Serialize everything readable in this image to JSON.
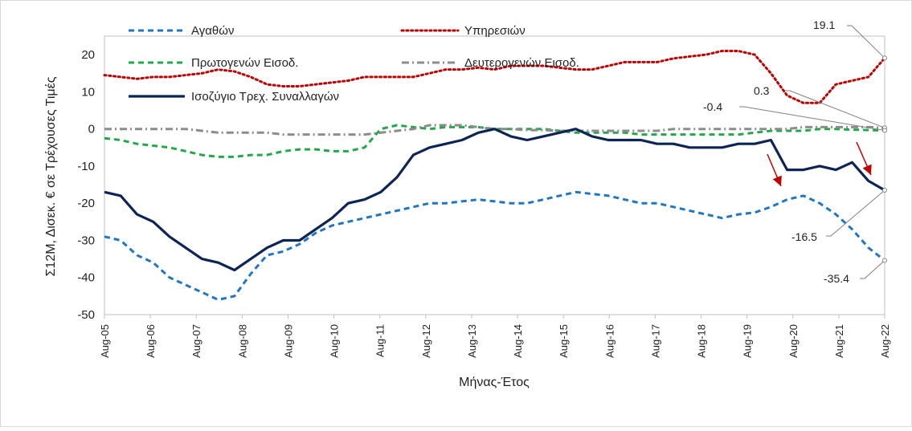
{
  "chart_data": {
    "type": "line",
    "xlabel": "Μήνας-Έτος",
    "ylabel": "Σ12Μ, Δισεκ. € σε Τρέχουσες Τιμές",
    "ylim": [
      -50,
      25
    ],
    "yticks": [
      20,
      10,
      0,
      -10,
      -20,
      -30,
      -40,
      -50
    ],
    "xticks": [
      "Aug-05",
      "Aug-06",
      "Aug-07",
      "Aug-08",
      "Aug-09",
      "Aug-10",
      "Aug-11",
      "Aug-12",
      "Aug-13",
      "Aug-14",
      "Aug-15",
      "Aug-16",
      "Aug-17",
      "Aug-18",
      "Aug-19",
      "Aug-20",
      "Aug-21",
      "Aug-22"
    ],
    "legend_position": "top",
    "grid": false,
    "series": [
      {
        "name": "Αγαθών",
        "color": "#1f77c4",
        "style": "dashed",
        "values": [
          -29,
          -30,
          -34,
          -36,
          -40,
          -42,
          -44,
          -46,
          -45,
          -39,
          -34,
          -33,
          -31,
          -28,
          -26,
          -25,
          -24,
          -23,
          -22,
          -21,
          -20,
          -20,
          -19.5,
          -19,
          -19.5,
          -20,
          -20,
          -19,
          -18,
          -17,
          -17.5,
          -18,
          -19,
          -20,
          -20,
          -21,
          -22,
          -23,
          -24,
          -23,
          -22.5,
          -21,
          -19,
          -18,
          -20,
          -23,
          -27,
          -32,
          -35.4
        ]
      },
      {
        "name": "Υπηρεσιών",
        "color": "#c00000",
        "style": "dotted",
        "values": [
          14.5,
          14,
          13.5,
          14,
          14,
          14.5,
          15,
          16,
          15.5,
          14,
          12,
          11.5,
          11.5,
          12,
          12.5,
          13,
          14,
          14,
          14,
          14,
          15,
          16,
          16,
          16.5,
          16,
          17,
          17,
          17,
          16.5,
          16,
          16,
          17,
          18,
          18,
          18,
          19,
          19.5,
          20,
          21,
          21,
          20,
          15,
          9,
          7,
          7,
          12,
          13,
          14,
          19.1
        ]
      },
      {
        "name": "Πρωτογενών Εισοδ.",
        "color": "#22a84a",
        "style": "dashed",
        "values": [
          -2.5,
          -3,
          -4,
          -4.5,
          -5,
          -6,
          -7,
          -7.5,
          -7.5,
          -7,
          -7,
          -6,
          -5.5,
          -5.5,
          -6,
          -6,
          -5,
          0,
          1,
          0.5,
          0,
          0.5,
          0.5,
          0.5,
          0,
          0,
          0,
          0,
          -0.5,
          -1,
          -1,
          -1,
          -1,
          -1.5,
          -1.5,
          -1.5,
          -1.5,
          -1.5,
          -1.5,
          -1.5,
          -1,
          -0.5,
          -0.5,
          -0.5,
          0,
          0,
          -0.2,
          -0.3,
          -0.4
        ]
      },
      {
        "name": "Δευτερογενών Εισοδ.",
        "color": "#8c8c8c",
        "style": "dashdot",
        "values": [
          0,
          0,
          0,
          0,
          0,
          0,
          -0.5,
          -1,
          -1,
          -1,
          -1,
          -1.5,
          -1.5,
          -1.5,
          -1.5,
          -1.5,
          -1.5,
          -1,
          -0.5,
          0,
          1,
          1,
          1,
          0.5,
          0,
          0,
          -0.3,
          -0.3,
          -0.5,
          -0.5,
          -0.5,
          -0.5,
          -0.5,
          -0.5,
          -0.5,
          0,
          0,
          0,
          0,
          0,
          0,
          0,
          0,
          0.5,
          0.5,
          0.5,
          0.5,
          0.5,
          0.3
        ]
      },
      {
        "name": "Ισοζύγιο Τρεχ. Συναλλαγών",
        "color": "#0d2456",
        "style": "solid",
        "values": [
          -17,
          -18,
          -23,
          -25,
          -29,
          -32,
          -35,
          -36,
          -38,
          -35,
          -32,
          -30,
          -30,
          -27,
          -24,
          -20,
          -19,
          -17,
          -13,
          -7,
          -5,
          -4,
          -3,
          -1,
          0,
          -2,
          -3,
          -2,
          -1,
          0,
          -2,
          -3,
          -3,
          -3,
          -4,
          -4,
          -5,
          -5,
          -5,
          -4,
          -4,
          -3,
          -11,
          -11,
          -10,
          -11,
          -9,
          -14,
          -16.5
        ]
      }
    ],
    "annotations": [
      {
        "label": "19.1",
        "series": "Υπηρεσιών"
      },
      {
        "label": "0.3",
        "series": "Δευτερογενών Εισοδ."
      },
      {
        "label": "-0.4",
        "series": "Πρωτογενών Εισοδ."
      },
      {
        "label": "-16.5",
        "series": "Ισοζύγιο Τρεχ. Συναλλαγών"
      },
      {
        "label": "-35.4",
        "series": "Αγαθών"
      }
    ],
    "arrow_color": "#c00000"
  }
}
